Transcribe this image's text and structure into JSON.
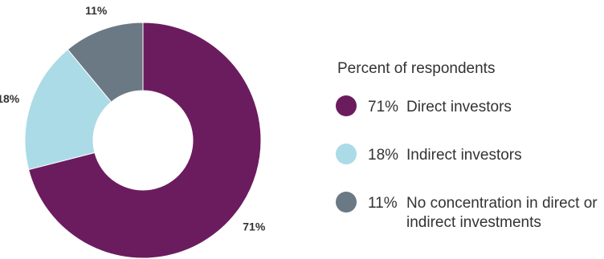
{
  "chart_data": {
    "type": "pie",
    "donut": true,
    "legend": {
      "title": "Percent of respondents",
      "placement": "right"
    },
    "slices": [
      {
        "pct_label": "71%",
        "name_lines": [
          "Direct investors"
        ],
        "value": 71,
        "color": "#6b1c5e"
      },
      {
        "pct_label": "18%",
        "name_lines": [
          "Indirect investors"
        ],
        "value": 18,
        "color": "#abdbe7"
      },
      {
        "pct_label": "11%",
        "name_lines": [
          "No concentration in direct or",
          "indirect investments"
        ],
        "value": 11,
        "color": "#6b7984"
      }
    ]
  }
}
